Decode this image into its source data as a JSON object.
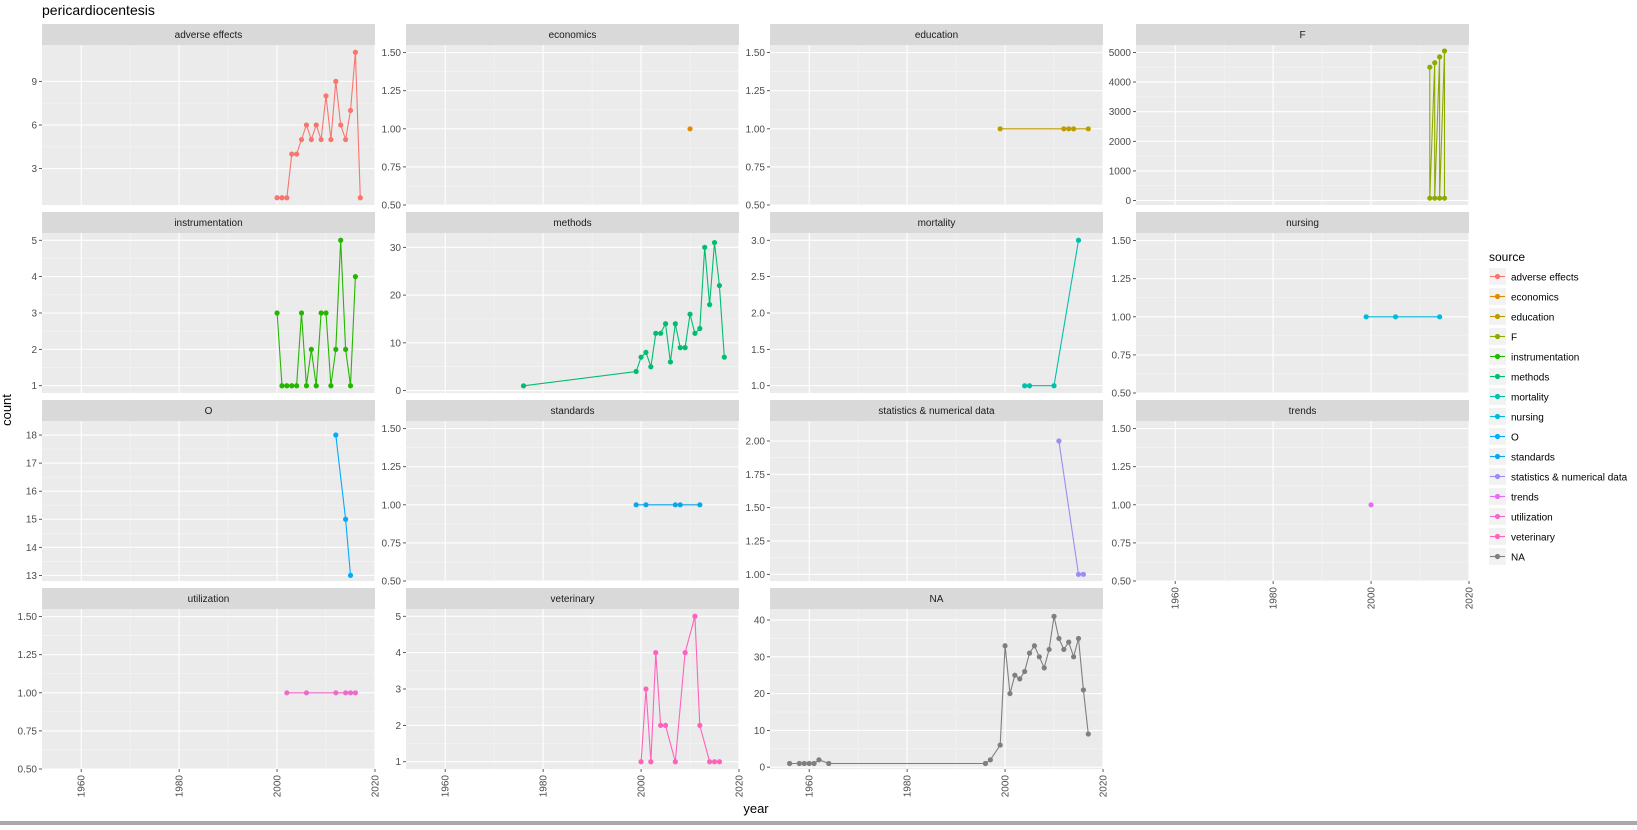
{
  "chart_data": {
    "type": "line",
    "title": "pericardiocentesis",
    "xlabel": "year",
    "ylabel": "count",
    "x_tick_labels": [
      "1960",
      "1980",
      "2000",
      "2020"
    ],
    "xlim": [
      1952,
      2020
    ],
    "legend": {
      "title": "source",
      "placement": "right",
      "entries": [
        {
          "label": "adverse effects",
          "color": "#F8766D"
        },
        {
          "label": "economics",
          "color": "#E18A00"
        },
        {
          "label": "education",
          "color": "#BE9C00"
        },
        {
          "label": "F",
          "color": "#8CAB00"
        },
        {
          "label": "instrumentation",
          "color": "#24B700"
        },
        {
          "label": "methods",
          "color": "#00BE70"
        },
        {
          "label": "mortality",
          "color": "#00C1AB"
        },
        {
          "label": "nursing",
          "color": "#00BBDA"
        },
        {
          "label": "O",
          "color": "#00ACFC"
        },
        {
          "label": "standards",
          "color": "#0AA6E8"
        },
        {
          "label": "statistics & numerical data",
          "color": "#9F8CF0"
        },
        {
          "label": "trends",
          "color": "#E76BF3"
        },
        {
          "label": "utilization",
          "color": "#EE6BCB"
        },
        {
          "label": "veterinary",
          "color": "#FF62BC"
        },
        {
          "label": "NA",
          "color": "#7F7F7F"
        }
      ]
    },
    "panels": [
      {
        "name": "adverse effects",
        "color": "#F8766D",
        "ylim": [
          0.5,
          11.5
        ],
        "y_ticks": [
          3,
          6,
          9
        ],
        "y_tick_labels": [
          "3",
          "6",
          "9"
        ],
        "points": [
          [
            2000,
            1
          ],
          [
            2001,
            1
          ],
          [
            2002,
            1
          ],
          [
            2003,
            4
          ],
          [
            2004,
            4
          ],
          [
            2005,
            5
          ],
          [
            2006,
            6
          ],
          [
            2007,
            5
          ],
          [
            2008,
            6
          ],
          [
            2009,
            5
          ],
          [
            2010,
            8
          ],
          [
            2011,
            5
          ],
          [
            2012,
            9
          ],
          [
            2013,
            6
          ],
          [
            2014,
            5
          ],
          [
            2015,
            7
          ],
          [
            2016,
            11
          ],
          [
            2017,
            1
          ]
        ]
      },
      {
        "name": "economics",
        "color": "#E18A00",
        "ylim": [
          0.5,
          1.55
        ],
        "y_ticks": [
          0.5,
          0.75,
          1,
          1.25,
          1.5
        ],
        "y_tick_labels": [
          "0.50",
          "0.75",
          "1.00",
          "1.25",
          "1.50"
        ],
        "points": [
          [
            2010,
            1
          ]
        ]
      },
      {
        "name": "education",
        "color": "#BE9C00",
        "ylim": [
          0.5,
          1.55
        ],
        "y_ticks": [
          0.5,
          0.75,
          1,
          1.25,
          1.5
        ],
        "y_tick_labels": [
          "0.50",
          "0.75",
          "1.00",
          "1.25",
          "1.50"
        ],
        "points": [
          [
            1999,
            1
          ],
          [
            2012,
            1
          ],
          [
            2013,
            1
          ],
          [
            2014,
            1
          ],
          [
            2017,
            1
          ]
        ]
      },
      {
        "name": "F",
        "color": "#8CAB00",
        "ylim": [
          -150,
          5250
        ],
        "y_ticks": [
          0,
          1000,
          2000,
          3000,
          4000,
          5000
        ],
        "y_tick_labels": [
          "0",
          "1000",
          "2000",
          "3000",
          "4000",
          "5000"
        ],
        "points": [
          [
            2012,
            4500
          ],
          [
            2012,
            80
          ],
          [
            2013,
            4650
          ],
          [
            2013,
            80
          ],
          [
            2014,
            4850
          ],
          [
            2014,
            80
          ],
          [
            2015,
            5050
          ],
          [
            2015,
            80
          ]
        ]
      },
      {
        "name": "instrumentation",
        "color": "#24B700",
        "ylim": [
          0.8,
          5.2
        ],
        "y_ticks": [
          1,
          2,
          3,
          4,
          5
        ],
        "y_tick_labels": [
          "1",
          "2",
          "3",
          "4",
          "5"
        ],
        "points": [
          [
            2000,
            3
          ],
          [
            2001,
            1
          ],
          [
            2002,
            1
          ],
          [
            2003,
            1
          ],
          [
            2004,
            1
          ],
          [
            2005,
            3
          ],
          [
            2006,
            1
          ],
          [
            2007,
            2
          ],
          [
            2008,
            1
          ],
          [
            2009,
            3
          ],
          [
            2010,
            3
          ],
          [
            2011,
            1
          ],
          [
            2012,
            2
          ],
          [
            2013,
            5
          ],
          [
            2014,
            2
          ],
          [
            2015,
            1
          ],
          [
            2016,
            4
          ]
        ]
      },
      {
        "name": "methods",
        "color": "#00BE70",
        "ylim": [
          -0.5,
          33
        ],
        "y_ticks": [
          0,
          10,
          20,
          30
        ],
        "y_tick_labels": [
          "0",
          "10",
          "20",
          "30"
        ],
        "points": [
          [
            1976,
            1
          ],
          [
            1999,
            4
          ],
          [
            2000,
            7
          ],
          [
            2001,
            8
          ],
          [
            2002,
            5
          ],
          [
            2003,
            12
          ],
          [
            2004,
            12
          ],
          [
            2005,
            14
          ],
          [
            2006,
            6
          ],
          [
            2007,
            14
          ],
          [
            2008,
            9
          ],
          [
            2009,
            9
          ],
          [
            2010,
            16
          ],
          [
            2011,
            12
          ],
          [
            2012,
            13
          ],
          [
            2013,
            30
          ],
          [
            2014,
            18
          ],
          [
            2015,
            31
          ],
          [
            2016,
            22
          ],
          [
            2017,
            7
          ]
        ]
      },
      {
        "name": "mortality",
        "color": "#00C1AB",
        "ylim": [
          0.9,
          3.1
        ],
        "y_ticks": [
          1,
          1.5,
          2,
          2.5,
          3
        ],
        "y_tick_labels": [
          "1.0",
          "1.5",
          "2.0",
          "2.5",
          "3.0"
        ],
        "points": [
          [
            2004,
            1
          ],
          [
            2005,
            1
          ],
          [
            2010,
            1
          ],
          [
            2015,
            3
          ]
        ]
      },
      {
        "name": "nursing",
        "color": "#00BBDA",
        "ylim": [
          0.5,
          1.55
        ],
        "y_ticks": [
          0.5,
          0.75,
          1,
          1.25,
          1.5
        ],
        "y_tick_labels": [
          "0.50",
          "0.75",
          "1.00",
          "1.25",
          "1.50"
        ],
        "points": [
          [
            1999,
            1
          ],
          [
            2005,
            1
          ],
          [
            2014,
            1
          ]
        ]
      },
      {
        "name": "O",
        "color": "#00ACFC",
        "ylim": [
          12.8,
          18.5
        ],
        "y_ticks": [
          13,
          14,
          15,
          16,
          17,
          18
        ],
        "y_tick_labels": [
          "13",
          "14",
          "15",
          "16",
          "17",
          "18"
        ],
        "points": [
          [
            2012,
            18
          ],
          [
            2014,
            15
          ],
          [
            2015,
            13
          ]
        ]
      },
      {
        "name": "standards",
        "color": "#0AA6E8",
        "ylim": [
          0.5,
          1.55
        ],
        "y_ticks": [
          0.5,
          0.75,
          1,
          1.25,
          1.5
        ],
        "y_tick_labels": [
          "0.50",
          "0.75",
          "1.00",
          "1.25",
          "1.50"
        ],
        "points": [
          [
            1999,
            1
          ],
          [
            2001,
            1
          ],
          [
            2007,
            1
          ],
          [
            2008,
            1
          ],
          [
            2012,
            1
          ]
        ]
      },
      {
        "name": "statistics & numerical data",
        "color": "#9F8CF0",
        "ylim": [
          0.95,
          2.15
        ],
        "y_ticks": [
          1,
          1.25,
          1.5,
          1.75,
          2
        ],
        "y_tick_labels": [
          "1.00",
          "1.25",
          "1.50",
          "1.75",
          "2.00"
        ],
        "points": [
          [
            2011,
            2
          ],
          [
            2015,
            1
          ],
          [
            2016,
            1
          ]
        ]
      },
      {
        "name": "trends",
        "color": "#E76BF3",
        "ylim": [
          0.5,
          1.55
        ],
        "y_ticks": [
          0.5,
          0.75,
          1,
          1.25,
          1.5
        ],
        "y_tick_labels": [
          "0.50",
          "0.75",
          "1.00",
          "1.25",
          "1.50"
        ],
        "points": [
          [
            2000,
            1
          ]
        ]
      },
      {
        "name": "utilization",
        "color": "#EE6BCB",
        "ylim": [
          0.5,
          1.55
        ],
        "y_ticks": [
          0.5,
          0.75,
          1,
          1.25,
          1.5
        ],
        "y_tick_labels": [
          "0.50",
          "0.75",
          "1.00",
          "1.25",
          "1.50"
        ],
        "points": [
          [
            2002,
            1
          ],
          [
            2006,
            1
          ],
          [
            2012,
            1
          ],
          [
            2014,
            1
          ],
          [
            2015,
            1
          ],
          [
            2016,
            1
          ]
        ]
      },
      {
        "name": "veterinary",
        "color": "#FF62BC",
        "ylim": [
          0.8,
          5.2
        ],
        "y_ticks": [
          1,
          2,
          3,
          4,
          5
        ],
        "y_tick_labels": [
          "1",
          "2",
          "3",
          "4",
          "5"
        ],
        "points": [
          [
            2000,
            1
          ],
          [
            2001,
            3
          ],
          [
            2002,
            1
          ],
          [
            2003,
            4
          ],
          [
            2004,
            2
          ],
          [
            2005,
            2
          ],
          [
            2007,
            1
          ],
          [
            2009,
            4
          ],
          [
            2011,
            5
          ],
          [
            2012,
            2
          ],
          [
            2014,
            1
          ],
          [
            2015,
            1
          ],
          [
            2016,
            1
          ]
        ]
      },
      {
        "name": "NA",
        "color": "#7F7F7F",
        "ylim": [
          -0.5,
          43
        ],
        "y_ticks": [
          0,
          10,
          20,
          30,
          40
        ],
        "y_tick_labels": [
          "0",
          "10",
          "20",
          "30",
          "40"
        ],
        "points": [
          [
            1956,
            1
          ],
          [
            1958,
            1
          ],
          [
            1959,
            1
          ],
          [
            1960,
            1
          ],
          [
            1961,
            1
          ],
          [
            1962,
            2
          ],
          [
            1964,
            1
          ],
          [
            1996,
            1
          ],
          [
            1997,
            2
          ],
          [
            1999,
            6
          ],
          [
            2000,
            33
          ],
          [
            2001,
            20
          ],
          [
            2002,
            25
          ],
          [
            2003,
            24
          ],
          [
            2004,
            26
          ],
          [
            2005,
            31
          ],
          [
            2006,
            33
          ],
          [
            2007,
            30
          ],
          [
            2008,
            27
          ],
          [
            2009,
            32
          ],
          [
            2010,
            41
          ],
          [
            2011,
            35
          ],
          [
            2012,
            32
          ],
          [
            2013,
            34
          ],
          [
            2014,
            30
          ],
          [
            2015,
            35
          ],
          [
            2016,
            21
          ],
          [
            2017,
            9
          ]
        ]
      }
    ]
  }
}
